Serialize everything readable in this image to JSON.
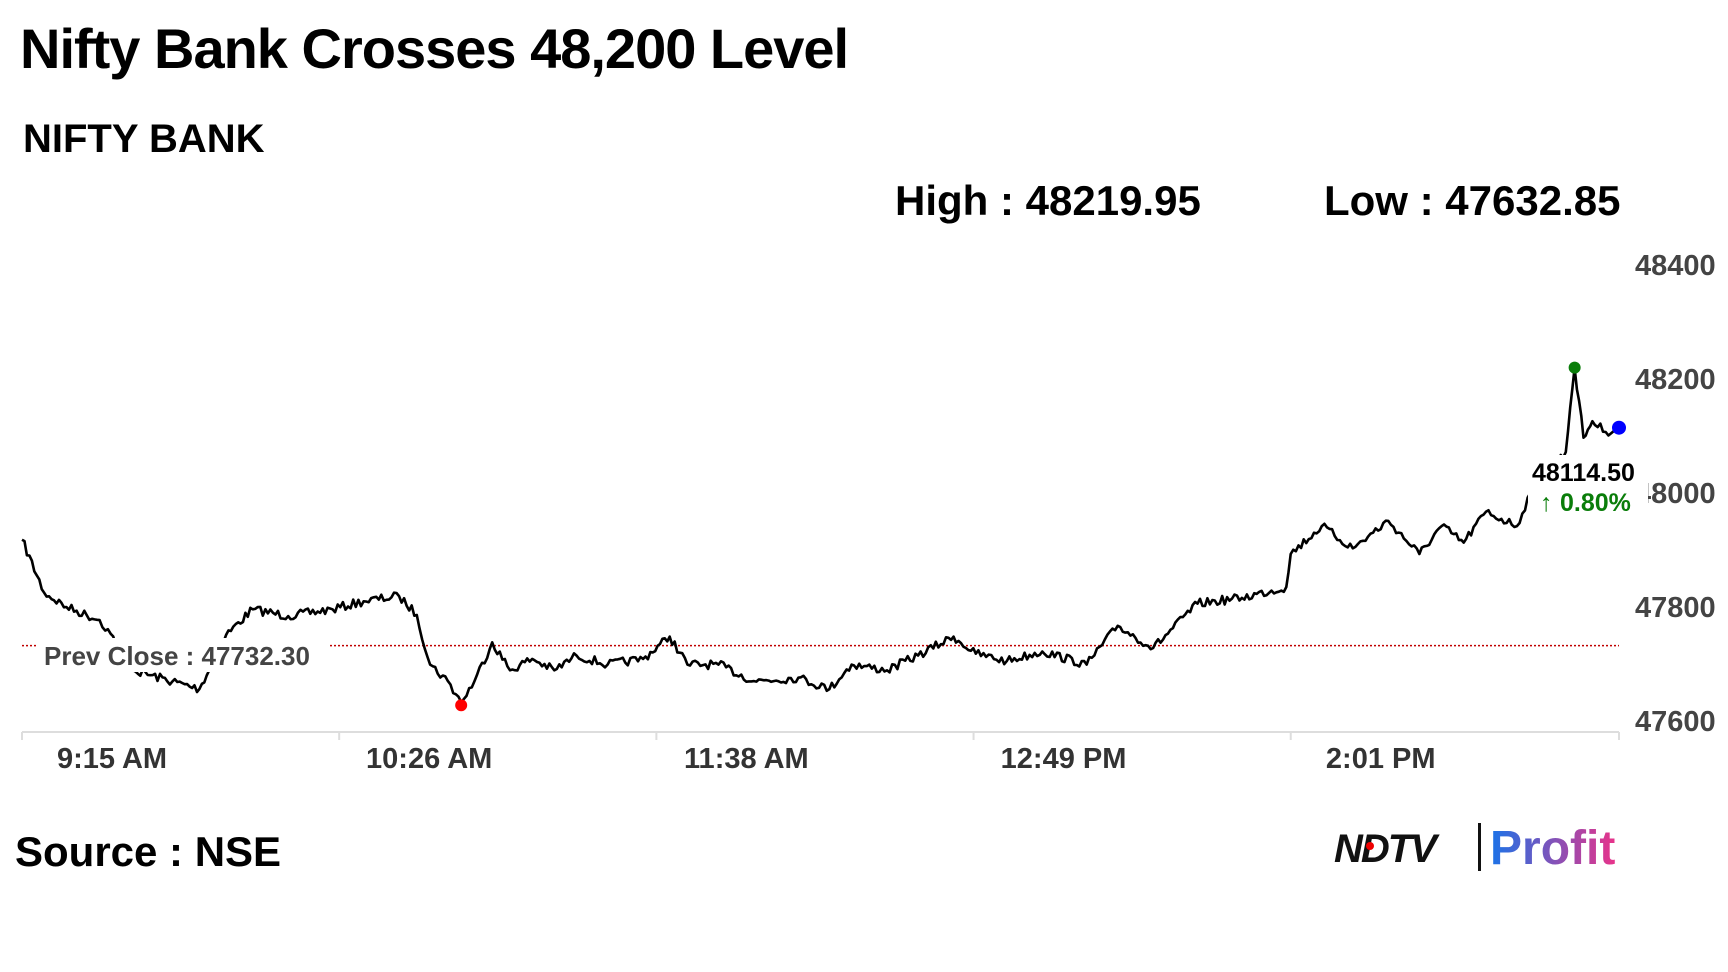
{
  "chart_data": {
    "type": "line",
    "title": "Nifty Bank Crosses 48,200 Level",
    "subtitle": "NIFTY BANK",
    "high_label": "High : 48219.95",
    "low_label": "Low : 47632.85",
    "high": 48219.95,
    "low": 47632.85,
    "prev_close": 47732.3,
    "prev_close_label": "Prev Close : 47732.30",
    "last_value_label": "48114.50",
    "change_label": "0.80%",
    "change_arrow": "↑",
    "ylim": [
      47600,
      48400
    ],
    "yticks": [
      "48400",
      "48200",
      "48000",
      "47800",
      "47600"
    ],
    "ytick_values": [
      48400,
      48200,
      48000,
      47800,
      47600
    ],
    "xlim_minutes_from_open": [
      0,
      360
    ],
    "xticks": [
      "9:15 AM",
      "10:26 AM",
      "11:38 AM",
      "12:49 PM",
      "2:01 PM"
    ],
    "xtick_minutes": [
      0,
      71.5,
      143,
      214.5,
      286
    ],
    "series": [
      {
        "name": "NIFTY BANK",
        "x_minutes": [
          0,
          5,
          10,
          17.5,
          20,
          25,
          40,
          46,
          52,
          60,
          70,
          77,
          85,
          89,
          92,
          96,
          99,
          102,
          106,
          110,
          115,
          120,
          125,
          132,
          140,
          146,
          150,
          157,
          165,
          175,
          182,
          187,
          195,
          202,
          210,
          215,
          222,
          230,
          240,
          247,
          255,
          265,
          275,
          285,
          286,
          293,
          300,
          308,
          315,
          320,
          325,
          330,
          337,
          340,
          348,
          349,
          350,
          352,
          354,
          357,
          360
        ],
        "values": [
          47918,
          47825,
          47800,
          47777,
          47753,
          47689,
          47656,
          47751,
          47796,
          47784,
          47796,
          47810,
          47819,
          47786,
          47699,
          47670,
          47632.85,
          47670,
          47738,
          47689,
          47709,
          47689,
          47715,
          47699,
          47709,
          47748,
          47699,
          47699,
          47670,
          47676,
          47656,
          47699,
          47689,
          47715,
          47748,
          47718,
          47705,
          47722,
          47699,
          47767,
          47728,
          47806,
          47816,
          47835,
          47893,
          47942,
          47903,
          47951,
          47893,
          47942,
          47913,
          47967,
          47942,
          48000,
          48072,
          48150,
          48219.95,
          48097,
          48126,
          48107,
          48114.5
        ]
      }
    ],
    "markers": {
      "high_color": "#0a7d0a",
      "low_color": "#ff0000",
      "last_color": "#0000ff"
    },
    "prev_close_color": "#c00000"
  },
  "footer": {
    "source": "Source : NSE",
    "logo_ndtv": "NDTV",
    "logo_profit": "Profit"
  }
}
